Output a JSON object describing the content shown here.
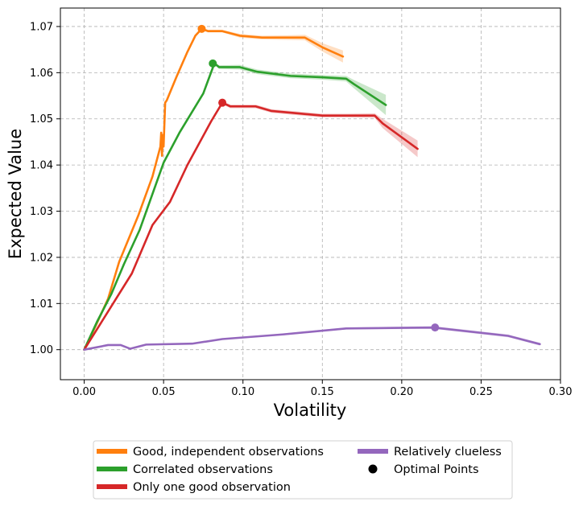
{
  "chart_data": {
    "type": "line",
    "title": "",
    "xlabel": "Volatility",
    "ylabel": "Expected Value",
    "xlim": [
      -0.015,
      0.3
    ],
    "ylim": [
      0.9935,
      1.074
    ],
    "x_ticks": [
      0.0,
      0.05,
      0.1,
      0.15,
      0.2,
      0.25,
      0.3
    ],
    "x_tick_labels": [
      "0.00",
      "0.05",
      "0.10",
      "0.15",
      "0.20",
      "0.25",
      "0.30"
    ],
    "y_ticks": [
      1.0,
      1.01,
      1.02,
      1.03,
      1.04,
      1.05,
      1.06,
      1.07
    ],
    "y_tick_labels": [
      "1.00",
      "1.01",
      "1.02",
      "1.03",
      "1.04",
      "1.05",
      "1.06",
      "1.07"
    ],
    "grid": true,
    "legend_position": "below plot",
    "legend_marker_label": "Optimal Points",
    "series": [
      {
        "name": "Good, independent observations",
        "color": "#ff7f0e",
        "x": [
          0.0,
          0.007,
          0.015,
          0.022,
          0.034,
          0.043,
          0.048,
          0.0485,
          0.049,
          0.0495,
          0.05,
          0.051,
          0.052,
          0.058,
          0.065,
          0.07,
          0.074,
          0.078,
          0.087,
          0.098,
          0.112,
          0.128,
          0.139,
          0.15,
          0.163
        ],
        "y": [
          1.0,
          1.005,
          1.011,
          1.019,
          1.029,
          1.0375,
          1.044,
          1.047,
          1.042,
          1.0465,
          1.044,
          1.0535,
          1.054,
          1.059,
          1.0645,
          1.068,
          1.0695,
          1.069,
          1.069,
          1.068,
          1.0676,
          1.0676,
          1.0676,
          1.0655,
          1.0635
        ],
        "band": [
          0.0,
          0.0,
          0.0,
          0.0,
          0.0,
          0.0,
          0.0,
          0.0,
          0.0,
          0.0,
          0.0,
          0.0,
          0.0,
          0.0,
          0.0,
          0.0,
          0.0003,
          0.0003,
          0.0003,
          0.0004,
          0.0004,
          0.0005,
          0.0006,
          0.0009,
          0.0013
        ],
        "optimal_point": {
          "x": 0.074,
          "y": 1.0695
        }
      },
      {
        "name": "Correlated observations",
        "color": "#2ca02c",
        "x": [
          0.0,
          0.008,
          0.017,
          0.025,
          0.035,
          0.05,
          0.06,
          0.075,
          0.082,
          0.085,
          0.098,
          0.109,
          0.13,
          0.15,
          0.165,
          0.17,
          0.19
        ],
        "y": [
          1.0,
          1.006,
          1.012,
          1.0185,
          1.026,
          1.0405,
          1.047,
          1.0555,
          1.062,
          1.0612,
          1.0612,
          1.0602,
          1.0593,
          1.059,
          1.0587,
          1.0575,
          1.053
        ],
        "band": [
          0.0,
          0.0,
          0.0,
          0.0,
          0.0,
          0.0,
          0.0,
          0.0,
          0.0003,
          0.0004,
          0.0005,
          0.0005,
          0.0005,
          0.0005,
          0.0006,
          0.0009,
          0.0022
        ],
        "optimal_point": {
          "x": 0.081,
          "y": 1.062
        }
      },
      {
        "name": "Only one good observation",
        "color": "#d62728",
        "x": [
          0.0,
          0.01,
          0.02,
          0.03,
          0.043,
          0.054,
          0.065,
          0.08,
          0.087,
          0.092,
          0.1,
          0.108,
          0.118,
          0.134,
          0.15,
          0.165,
          0.183,
          0.188,
          0.21
        ],
        "y": [
          1.0,
          1.0055,
          1.011,
          1.0165,
          1.027,
          1.032,
          1.04,
          1.0495,
          1.0535,
          1.0527,
          1.0527,
          1.0527,
          1.0517,
          1.0512,
          1.0507,
          1.0507,
          1.0507,
          1.049,
          1.0435
        ],
        "band": [
          0.0,
          0.0,
          0.0,
          0.0,
          0.0,
          0.0,
          0.0,
          0.0,
          0.0003,
          0.0004,
          0.0004,
          0.0004,
          0.0004,
          0.0004,
          0.0004,
          0.0004,
          0.0005,
          0.001,
          0.0018
        ],
        "optimal_point": {
          "x": 0.087,
          "y": 1.0535
        }
      },
      {
        "name": "Relatively clueless",
        "color": "#9467bd",
        "x": [
          0.0,
          0.015,
          0.023,
          0.029,
          0.039,
          0.068,
          0.087,
          0.125,
          0.165,
          0.22,
          0.267,
          0.287
        ],
        "y": [
          1.0,
          1.001,
          1.001,
          1.0002,
          1.0011,
          1.0013,
          1.0023,
          1.0033,
          1.0046,
          1.0048,
          1.003,
          1.0012
        ],
        "band": [
          0.0,
          0.0,
          0.0,
          0.0,
          0.0,
          0.0,
          0.0001,
          0.0002,
          0.0002,
          0.0003,
          0.0003,
          0.0003
        ],
        "optimal_point": {
          "x": 0.221,
          "y": 1.0048
        }
      }
    ]
  }
}
